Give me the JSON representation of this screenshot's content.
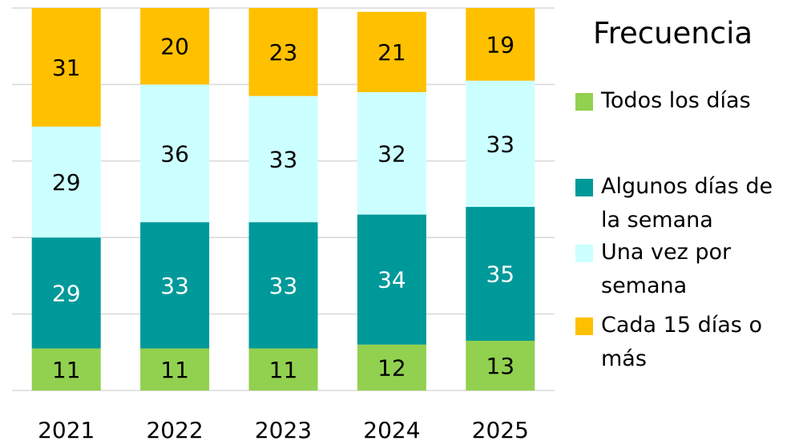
{
  "chart_data": {
    "type": "stacked_bar",
    "legend_title": "Frecuencia",
    "categories": [
      "2021",
      "2022",
      "2023",
      "2024",
      "2025"
    ],
    "series": [
      {
        "name": "Todos los días",
        "color": "#92d050",
        "label_color": "#000000",
        "values": [
          11,
          11,
          11,
          12,
          13
        ]
      },
      {
        "name": "Algunos días de la semana",
        "color": "#009999",
        "label_color": "#ffffff",
        "values": [
          29,
          33,
          33,
          34,
          35
        ]
      },
      {
        "name": "Una vez por semana",
        "color": "#ccffff",
        "label_color": "#000000",
        "values": [
          29,
          36,
          33,
          32,
          33
        ]
      },
      {
        "name": "Cada 15 días o más",
        "color": "#ffc000",
        "label_color": "#000000",
        "values": [
          31,
          20,
          23,
          21,
          19
        ]
      }
    ],
    "ylim": [
      0,
      100
    ],
    "yticks": [
      0,
      20,
      40,
      60,
      80,
      100
    ],
    "grid": true,
    "legend": "right"
  }
}
